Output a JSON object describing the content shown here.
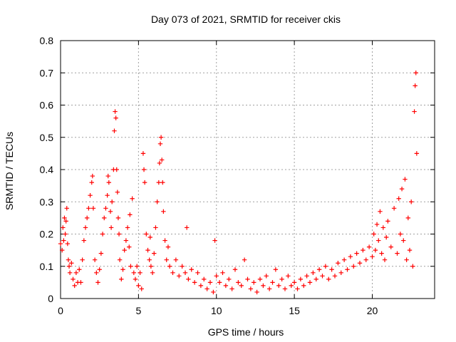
{
  "chart_data": {
    "type": "scatter",
    "title": "Day 073 of 2021, SRMTID for receiver ckis",
    "xlabel": "GPS time / hours",
    "ylabel": "SRMTID / TECUs",
    "xlim": [
      0,
      24
    ],
    "ylim": [
      0,
      0.8
    ],
    "xticks": [
      0,
      5,
      10,
      15,
      20
    ],
    "yticks": [
      0,
      0.1,
      0.2,
      0.3,
      0.4,
      0.5,
      0.6,
      0.7,
      0.8
    ],
    "xtick_labels": [
      "0",
      "5",
      "10",
      "15",
      "20"
    ],
    "ytick_labels": [
      "0",
      "0.1",
      "0.2",
      "0.3",
      "0.4",
      "0.5",
      "0.6",
      "0.7",
      "0.8"
    ],
    "grid": true,
    "marker": "+",
    "color": "#ff0000",
    "series": [
      {
        "name": "SRMTID",
        "points": [
          [
            0.0,
            0.17
          ],
          [
            0.1,
            0.15
          ],
          [
            0.15,
            0.22
          ],
          [
            0.2,
            0.18
          ],
          [
            0.25,
            0.25
          ],
          [
            0.3,
            0.2
          ],
          [
            0.35,
            0.24
          ],
          [
            0.4,
            0.28
          ],
          [
            0.45,
            0.17
          ],
          [
            0.5,
            0.12
          ],
          [
            0.55,
            0.1
          ],
          [
            0.6,
            0.08
          ],
          [
            0.7,
            0.11
          ],
          [
            0.8,
            0.06
          ],
          [
            0.9,
            0.04
          ],
          [
            1.0,
            0.08
          ],
          [
            1.1,
            0.05
          ],
          [
            1.2,
            0.09
          ],
          [
            1.3,
            0.05
          ],
          [
            1.4,
            0.12
          ],
          [
            1.5,
            0.18
          ],
          [
            1.6,
            0.22
          ],
          [
            1.7,
            0.25
          ],
          [
            1.8,
            0.28
          ],
          [
            1.9,
            0.32
          ],
          [
            2.0,
            0.36
          ],
          [
            2.05,
            0.38
          ],
          [
            2.1,
            0.28
          ],
          [
            2.2,
            0.12
          ],
          [
            2.3,
            0.08
          ],
          [
            2.4,
            0.05
          ],
          [
            2.5,
            0.09
          ],
          [
            2.6,
            0.14
          ],
          [
            2.7,
            0.2
          ],
          [
            2.8,
            0.25
          ],
          [
            2.9,
            0.28
          ],
          [
            3.0,
            0.32
          ],
          [
            3.05,
            0.38
          ],
          [
            3.1,
            0.36
          ],
          [
            3.2,
            0.27
          ],
          [
            3.25,
            0.22
          ],
          [
            3.3,
            0.3
          ],
          [
            3.4,
            0.4
          ],
          [
            3.45,
            0.52
          ],
          [
            3.5,
            0.58
          ],
          [
            3.55,
            0.56
          ],
          [
            3.6,
            0.4
          ],
          [
            3.65,
            0.33
          ],
          [
            3.7,
            0.25
          ],
          [
            3.75,
            0.2
          ],
          [
            3.8,
            0.12
          ],
          [
            3.9,
            0.06
          ],
          [
            4.0,
            0.09
          ],
          [
            4.1,
            0.15
          ],
          [
            4.2,
            0.18
          ],
          [
            4.3,
            0.22
          ],
          [
            4.4,
            0.16
          ],
          [
            4.45,
            0.26
          ],
          [
            4.5,
            0.1
          ],
          [
            4.6,
            0.31
          ],
          [
            4.7,
            0.08
          ],
          [
            4.8,
            0.06
          ],
          [
            4.9,
            0.1
          ],
          [
            5.0,
            0.04
          ],
          [
            5.1,
            0.08
          ],
          [
            5.2,
            0.03
          ],
          [
            5.3,
            0.45
          ],
          [
            5.35,
            0.4
          ],
          [
            5.4,
            0.36
          ],
          [
            5.5,
            0.2
          ],
          [
            5.6,
            0.15
          ],
          [
            5.7,
            0.12
          ],
          [
            5.75,
            0.19
          ],
          [
            5.8,
            0.1
          ],
          [
            5.9,
            0.08
          ],
          [
            6.0,
            0.14
          ],
          [
            6.1,
            0.22
          ],
          [
            6.2,
            0.3
          ],
          [
            6.3,
            0.36
          ],
          [
            6.35,
            0.42
          ],
          [
            6.4,
            0.48
          ],
          [
            6.45,
            0.5
          ],
          [
            6.5,
            0.43
          ],
          [
            6.55,
            0.36
          ],
          [
            6.6,
            0.27
          ],
          [
            6.7,
            0.18
          ],
          [
            6.8,
            0.12
          ],
          [
            6.9,
            0.16
          ],
          [
            7.0,
            0.1
          ],
          [
            7.2,
            0.08
          ],
          [
            7.4,
            0.12
          ],
          [
            7.6,
            0.07
          ],
          [
            7.8,
            0.1
          ],
          [
            8.0,
            0.08
          ],
          [
            8.1,
            0.22
          ],
          [
            8.2,
            0.06
          ],
          [
            8.4,
            0.09
          ],
          [
            8.6,
            0.05
          ],
          [
            8.8,
            0.08
          ],
          [
            9.0,
            0.04
          ],
          [
            9.2,
            0.06
          ],
          [
            9.4,
            0.03
          ],
          [
            9.6,
            0.05
          ],
          [
            9.8,
            0.02
          ],
          [
            9.9,
            0.18
          ],
          [
            10.0,
            0.07
          ],
          [
            10.2,
            0.05
          ],
          [
            10.4,
            0.08
          ],
          [
            10.6,
            0.04
          ],
          [
            10.8,
            0.06
          ],
          [
            11.0,
            0.03
          ],
          [
            11.2,
            0.09
          ],
          [
            11.4,
            0.05
          ],
          [
            11.6,
            0.04
          ],
          [
            11.8,
            0.12
          ],
          [
            12.0,
            0.06
          ],
          [
            12.2,
            0.03
          ],
          [
            12.4,
            0.05
          ],
          [
            12.6,
            0.02
          ],
          [
            12.8,
            0.06
          ],
          [
            13.0,
            0.04
          ],
          [
            13.2,
            0.07
          ],
          [
            13.4,
            0.03
          ],
          [
            13.6,
            0.05
          ],
          [
            13.8,
            0.09
          ],
          [
            14.0,
            0.04
          ],
          [
            14.2,
            0.06
          ],
          [
            14.4,
            0.03
          ],
          [
            14.6,
            0.07
          ],
          [
            14.8,
            0.04
          ],
          [
            15.0,
            0.05
          ],
          [
            15.2,
            0.03
          ],
          [
            15.4,
            0.06
          ],
          [
            15.6,
            0.04
          ],
          [
            15.8,
            0.07
          ],
          [
            16.0,
            0.05
          ],
          [
            16.2,
            0.08
          ],
          [
            16.4,
            0.06
          ],
          [
            16.6,
            0.09
          ],
          [
            16.8,
            0.07
          ],
          [
            17.0,
            0.1
          ],
          [
            17.2,
            0.06
          ],
          [
            17.4,
            0.09
          ],
          [
            17.6,
            0.07
          ],
          [
            17.8,
            0.11
          ],
          [
            18.0,
            0.08
          ],
          [
            18.2,
            0.12
          ],
          [
            18.4,
            0.09
          ],
          [
            18.6,
            0.13
          ],
          [
            18.8,
            0.1
          ],
          [
            19.0,
            0.14
          ],
          [
            19.2,
            0.11
          ],
          [
            19.4,
            0.15
          ],
          [
            19.6,
            0.12
          ],
          [
            19.8,
            0.16
          ],
          [
            20.0,
            0.13
          ],
          [
            20.1,
            0.2
          ],
          [
            20.2,
            0.15
          ],
          [
            20.3,
            0.23
          ],
          [
            20.4,
            0.18
          ],
          [
            20.5,
            0.27
          ],
          [
            20.6,
            0.14
          ],
          [
            20.7,
            0.22
          ],
          [
            20.8,
            0.12
          ],
          [
            20.9,
            0.19
          ],
          [
            21.0,
            0.24
          ],
          [
            21.2,
            0.16
          ],
          [
            21.4,
            0.28
          ],
          [
            21.6,
            0.14
          ],
          [
            21.7,
            0.31
          ],
          [
            21.8,
            0.2
          ],
          [
            21.9,
            0.34
          ],
          [
            22.0,
            0.18
          ],
          [
            22.1,
            0.37
          ],
          [
            22.2,
            0.12
          ],
          [
            22.3,
            0.25
          ],
          [
            22.4,
            0.15
          ],
          [
            22.5,
            0.3
          ],
          [
            22.6,
            0.1
          ],
          [
            22.7,
            0.58
          ],
          [
            22.75,
            0.66
          ],
          [
            22.8,
            0.7
          ],
          [
            22.85,
            0.45
          ]
        ]
      }
    ]
  }
}
